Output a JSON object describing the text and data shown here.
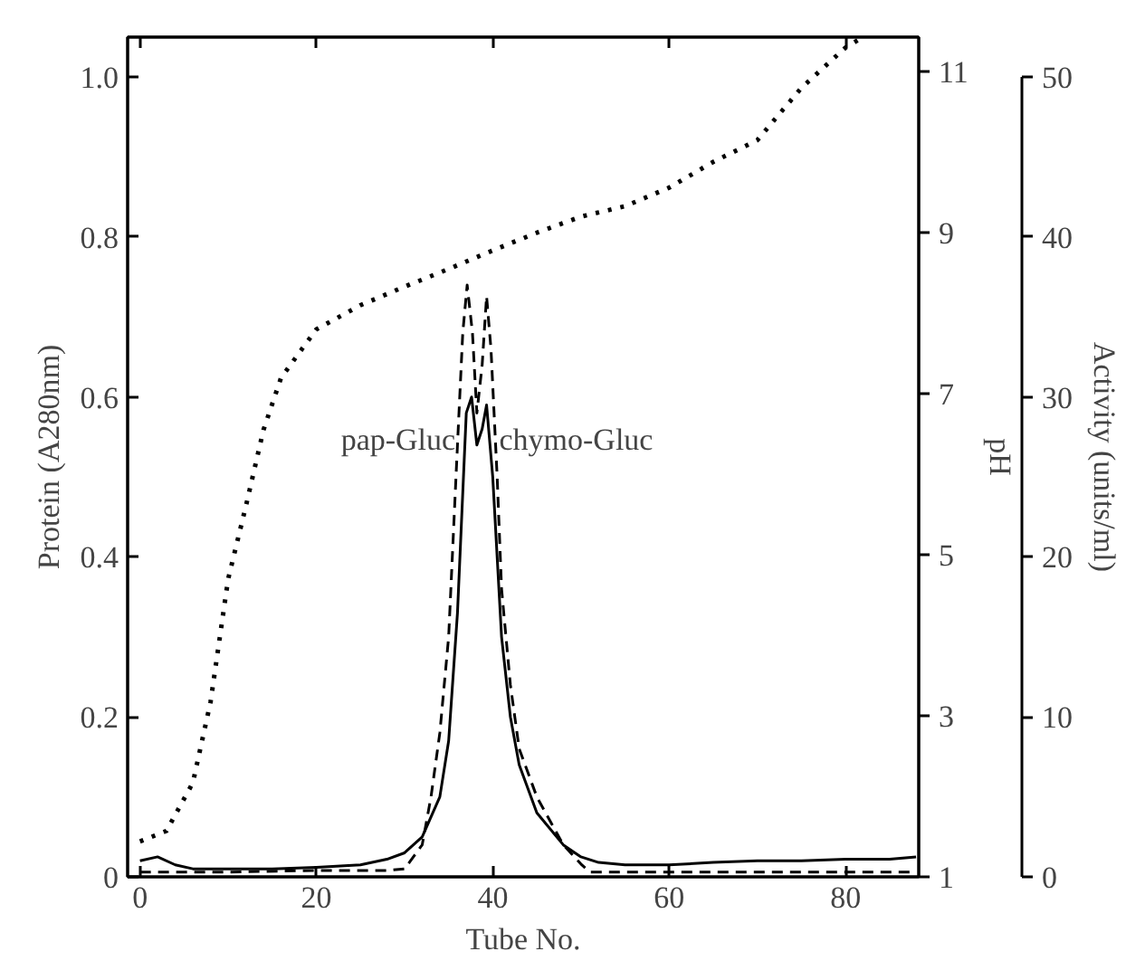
{
  "chart_data": {
    "type": "line",
    "xlabel": "Tube No.",
    "ylabel": "Protein (A280nm)",
    "y2label": "pH",
    "y3label": "Activity (units/ml)",
    "xlim": [
      -1.4,
      88.3
    ],
    "xticks": [
      0,
      20,
      40,
      60,
      80
    ],
    "ylim": [
      0,
      1.05
    ],
    "yticks": [
      0,
      0.2,
      0.4,
      0.6,
      0.8,
      {
        "value": 1,
        "label": "1.0"
      }
    ],
    "y2lim": [
      1,
      11.43
    ],
    "y2ticks": [
      1,
      3,
      5,
      7,
      9,
      11
    ],
    "y3lim": [
      0,
      52.5
    ],
    "y3ticks": [
      0,
      10,
      20,
      30,
      40,
      50
    ],
    "grid": false,
    "series": [
      {
        "color": "#000000",
        "line_style": "solid",
        "axis": "y",
        "x": [
          0,
          2,
          4,
          6,
          10,
          15,
          20,
          25,
          28,
          30,
          32,
          34,
          35,
          36,
          37,
          37.6,
          38.2,
          38.8,
          39.3,
          40,
          41,
          42,
          43,
          45,
          48,
          50,
          52,
          55,
          60,
          65,
          70,
          75,
          80,
          85,
          88
        ],
        "values": [
          0.02,
          0.025,
          0.015,
          0.01,
          0.01,
          0.01,
          0.012,
          0.015,
          0.022,
          0.03,
          0.05,
          0.1,
          0.17,
          0.33,
          0.58,
          0.6,
          0.54,
          0.56,
          0.59,
          0.5,
          0.3,
          0.2,
          0.14,
          0.08,
          0.04,
          0.025,
          0.018,
          0.015,
          0.015,
          0.018,
          0.02,
          0.02,
          0.022,
          0.022,
          0.025
        ]
      },
      {
        "color": "#000000",
        "line_style": "dashed",
        "axis": "y3",
        "x": [
          0,
          10,
          20,
          28,
          30,
          32,
          33,
          34,
          35,
          36,
          36.6,
          37.1,
          37.7,
          38.2,
          38.8,
          39.3,
          39.8,
          40.5,
          41,
          42,
          43,
          45,
          48,
          50,
          51,
          55,
          60,
          70,
          80,
          88
        ],
        "values": [
          0.3,
          0.3,
          0.4,
          0.4,
          0.5,
          2,
          5,
          9,
          15,
          27,
          34,
          37,
          34,
          29,
          32,
          36.3,
          33,
          25,
          18,
          12,
          8,
          5,
          2,
          0.8,
          0.3,
          0.3,
          0.3,
          0.3,
          0.3,
          0.3
        ]
      },
      {
        "color": "#000000",
        "line_style": "dotted",
        "axis": "y2",
        "x": [
          0,
          3,
          6,
          8,
          10,
          12,
          14,
          16,
          20,
          25,
          30,
          35,
          40,
          45,
          50,
          55,
          60,
          65,
          70,
          75,
          80,
          82
        ],
        "values": [
          1.44,
          1.57,
          2.17,
          3.17,
          4.7,
          5.6,
          6.55,
          7.2,
          7.8,
          8.1,
          8.33,
          8.55,
          8.78,
          9.0,
          9.2,
          9.33,
          9.56,
          9.88,
          10.15,
          10.8,
          11.3,
          11.43
        ]
      }
    ],
    "annotations": [
      {
        "text": "pap-Gluc",
        "x": 37,
        "y": 0.6
      },
      {
        "text": "chymo-Gluc",
        "x": 39.5,
        "y": 0.6
      }
    ]
  }
}
